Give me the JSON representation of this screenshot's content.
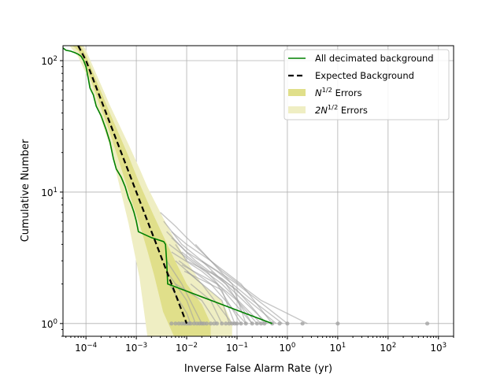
{
  "chart_data": {
    "type": "line",
    "xscale": "log",
    "yscale": "log",
    "xlim": [
      3.5e-05,
      2000
    ],
    "ylim": [
      0.8,
      130
    ],
    "grid": true,
    "legend_position": "top-right",
    "xlabel": "Inverse False Alarm Rate (yr)",
    "ylabel": "Cumulative Number",
    "x_ticks": [
      {
        "value": 0.0001,
        "label": "10",
        "exp": "−4"
      },
      {
        "value": 0.001,
        "label": "10",
        "exp": "−3"
      },
      {
        "value": 0.01,
        "label": "10",
        "exp": "−2"
      },
      {
        "value": 0.1,
        "label": "10",
        "exp": "−1"
      },
      {
        "value": 1,
        "label": "10",
        "exp": "0"
      },
      {
        "value": 10,
        "label": "10",
        "exp": "1"
      },
      {
        "value": 100,
        "label": "10",
        "exp": "2"
      },
      {
        "value": 1000,
        "label": "10",
        "exp": "3"
      }
    ],
    "y_ticks": [
      {
        "value": 1,
        "label": "10",
        "exp": "0"
      },
      {
        "value": 10,
        "label": "10",
        "exp": "1"
      },
      {
        "value": 100,
        "label": "10",
        "exp": "2"
      }
    ],
    "legend": [
      {
        "label": "All decimated background",
        "exp": "",
        "tail": "",
        "style": "line",
        "color": "#008000"
      },
      {
        "label": "Expected Background",
        "exp": "",
        "tail": "",
        "style": "dashed",
        "color": "#000000"
      },
      {
        "label": "N",
        "exp": "1/2",
        "tail": " Errors",
        "style": "patch",
        "color": "#e0df8a"
      },
      {
        "label": "2N",
        "exp": "1/2",
        "tail": " Errors",
        "style": "patch",
        "color": "#efeec3"
      }
    ],
    "series": [
      {
        "name": "All decimated background",
        "color": "#008000",
        "points": [
          [
            3.5e-05,
            125
          ],
          [
            4e-05,
            120
          ],
          [
            5e-05,
            118
          ],
          [
            6e-05,
            115
          ],
          [
            7e-05,
            112
          ],
          [
            8e-05,
            108
          ],
          [
            9e-05,
            100
          ],
          [
            0.0001,
            90
          ],
          [
            0.00011,
            75
          ],
          [
            0.00012,
            62
          ],
          [
            0.00014,
            55
          ],
          [
            0.00016,
            45
          ],
          [
            0.0002,
            38
          ],
          [
            0.00025,
            30
          ],
          [
            0.0003,
            24
          ],
          [
            0.00035,
            18
          ],
          [
            0.0004,
            15
          ],
          [
            0.0005,
            13
          ],
          [
            0.0006,
            11
          ],
          [
            0.0007,
            9
          ],
          [
            0.0008,
            8
          ],
          [
            0.0009,
            7
          ],
          [
            0.001,
            6
          ],
          [
            0.0011,
            5
          ],
          [
            0.002,
            4.5
          ],
          [
            0.0035,
            4.2
          ],
          [
            0.0038,
            4
          ],
          [
            0.004,
            3
          ],
          [
            0.0042,
            2
          ],
          [
            0.5,
            1
          ]
        ]
      },
      {
        "name": "Expected Background",
        "color": "#000000",
        "points": [
          [
            7e-05,
            130
          ],
          [
            0.0001001,
            100.2
          ],
          [
            0.000295,
            33.99
          ],
          [
            0.000694,
            14.45
          ],
          [
            0.00116,
            8.644
          ],
          [
            0.00166,
            6.04
          ],
          [
            0.00226,
            4.437
          ],
          [
            0.0034,
            2.949
          ],
          [
            0.00559,
            1.794
          ],
          [
            0.01,
            1
          ]
        ]
      }
    ],
    "bands": [
      {
        "name": "2N^1/2",
        "color": "#efeec3",
        "points": [
          [
            3.5e-05,
            150,
            150
          ],
          [
            7e-05,
            153,
            107
          ],
          [
            0.0001,
            120,
            80
          ],
          [
            0.0003,
            45.66,
            22.32
          ],
          [
            0.0007,
            23.11,
            5.79
          ],
          [
            0.00116,
            15.06,
            2.22
          ],
          [
            0.00166,
            10.95,
            0.8
          ],
          [
            0.00226,
            8.65,
            0.8
          ],
          [
            0.0034,
            6.38,
            0.8
          ],
          [
            0.00559,
            4.474,
            0.8
          ],
          [
            0.01,
            3.0,
            0.8
          ],
          [
            0.02,
            2.0,
            0.8
          ],
          [
            0.05,
            1.5,
            0.8
          ],
          [
            0.08,
            1.0,
            0.8
          ]
        ]
      },
      {
        "name": "N^1/2",
        "color": "#e0df8a",
        "points": [
          [
            3.5e-05,
            150,
            150
          ],
          [
            7e-05,
            141,
            119
          ],
          [
            0.0001,
            110,
            90
          ],
          [
            0.0003,
            39.83,
            28.15
          ],
          [
            0.0007,
            18.78,
            10.12
          ],
          [
            0.00116,
            11.58,
            5.7
          ],
          [
            0.00166,
            8.5,
            3.58
          ],
          [
            0.00226,
            6.54,
            2.33
          ],
          [
            0.0034,
            4.67,
            1.23
          ],
          [
            0.00559,
            3.13,
            0.8
          ],
          [
            0.01,
            2.0,
            0.8
          ],
          [
            0.02,
            1.4,
            0.8
          ],
          [
            0.03,
            1.0,
            0.8
          ]
        ]
      }
    ],
    "background_trials": {
      "color": "#a0a0a0",
      "lines": [
        [
          [
            0.003,
            7
          ],
          [
            0.006,
            5.5
          ],
          [
            0.01,
            4.5
          ],
          [
            0.05,
            2.5
          ],
          [
            0.3,
            1.5
          ],
          [
            2.5,
            1
          ]
        ],
        [
          [
            0.0035,
            6
          ],
          [
            0.008,
            4
          ],
          [
            0.02,
            3
          ],
          [
            0.1,
            2
          ],
          [
            1.0,
            1
          ]
        ],
        [
          [
            0.004,
            5
          ],
          [
            0.01,
            3.5
          ],
          [
            0.04,
            2.5
          ],
          [
            0.2,
            1.5
          ],
          [
            0.8,
            1
          ]
        ],
        [
          [
            0.0045,
            4
          ],
          [
            0.012,
            3
          ],
          [
            0.05,
            2
          ],
          [
            0.3,
            1
          ]
        ],
        [
          [
            0.005,
            4.5
          ],
          [
            0.015,
            3
          ],
          [
            0.06,
            2
          ],
          [
            0.4,
            1
          ]
        ],
        [
          [
            0.005,
            3.5
          ],
          [
            0.02,
            2.5
          ],
          [
            0.1,
            1.5
          ],
          [
            0.2,
            1
          ]
        ],
        [
          [
            0.006,
            3
          ],
          [
            0.02,
            2
          ],
          [
            0.08,
            1
          ]
        ],
        [
          [
            0.007,
            3
          ],
          [
            0.03,
            2
          ],
          [
            0.15,
            1
          ]
        ],
        [
          [
            0.008,
            2.8
          ],
          [
            0.04,
            2
          ],
          [
            0.12,
            1
          ]
        ],
        [
          [
            0.009,
            2.5
          ],
          [
            0.05,
            1.8
          ],
          [
            0.09,
            1
          ]
        ],
        [
          [
            0.01,
            2.5
          ],
          [
            0.05,
            1.5
          ],
          [
            0.07,
            1
          ]
        ],
        [
          [
            0.012,
            2
          ],
          [
            0.03,
            1.5
          ],
          [
            0.05,
            1
          ]
        ],
        [
          [
            0.004,
            3
          ],
          [
            0.008,
            2
          ],
          [
            0.02,
            1
          ]
        ],
        [
          [
            0.004,
            2.5
          ],
          [
            0.01,
            1.5
          ],
          [
            0.015,
            1
          ]
        ],
        [
          [
            0.0045,
            2
          ],
          [
            0.01,
            1.2
          ],
          [
            0.012,
            1
          ]
        ],
        [
          [
            0.006,
            4
          ],
          [
            0.01,
            3
          ],
          [
            0.05,
            2.2
          ],
          [
            0.6,
            1
          ]
        ],
        [
          [
            0.005,
            5
          ],
          [
            0.01,
            4
          ],
          [
            0.03,
            3
          ],
          [
            0.12,
            2
          ],
          [
            0.5,
            1
          ]
        ],
        [
          [
            0.006,
            2
          ],
          [
            0.02,
            1.5
          ],
          [
            0.04,
            1
          ]
        ],
        [
          [
            0.02,
            3
          ],
          [
            0.06,
            2
          ],
          [
            0.1,
            1.5
          ],
          [
            0.25,
            1
          ]
        ],
        [
          [
            0.015,
            4
          ],
          [
            0.03,
            3
          ],
          [
            0.08,
            2
          ],
          [
            0.15,
            1
          ]
        ],
        [
          [
            0.03,
            2.5
          ],
          [
            0.1,
            1.8
          ],
          [
            0.25,
            1.2
          ],
          [
            0.35,
            1
          ]
        ],
        [
          [
            0.008,
            3.5
          ],
          [
            0.025,
            2.5
          ],
          [
            0.2,
            1
          ]
        ]
      ],
      "dots": [
        0.005,
        0.006,
        0.007,
        0.008,
        0.009,
        0.01,
        0.011,
        0.012,
        0.014,
        0.016,
        0.018,
        0.02,
        0.022,
        0.025,
        0.03,
        0.035,
        0.04,
        0.05,
        0.06,
        0.07,
        0.08,
        0.09,
        0.1,
        0.12,
        0.15,
        0.2,
        0.25,
        0.3,
        0.35,
        0.5,
        0.7,
        1.0,
        2.0,
        10,
        600
      ]
    }
  }
}
